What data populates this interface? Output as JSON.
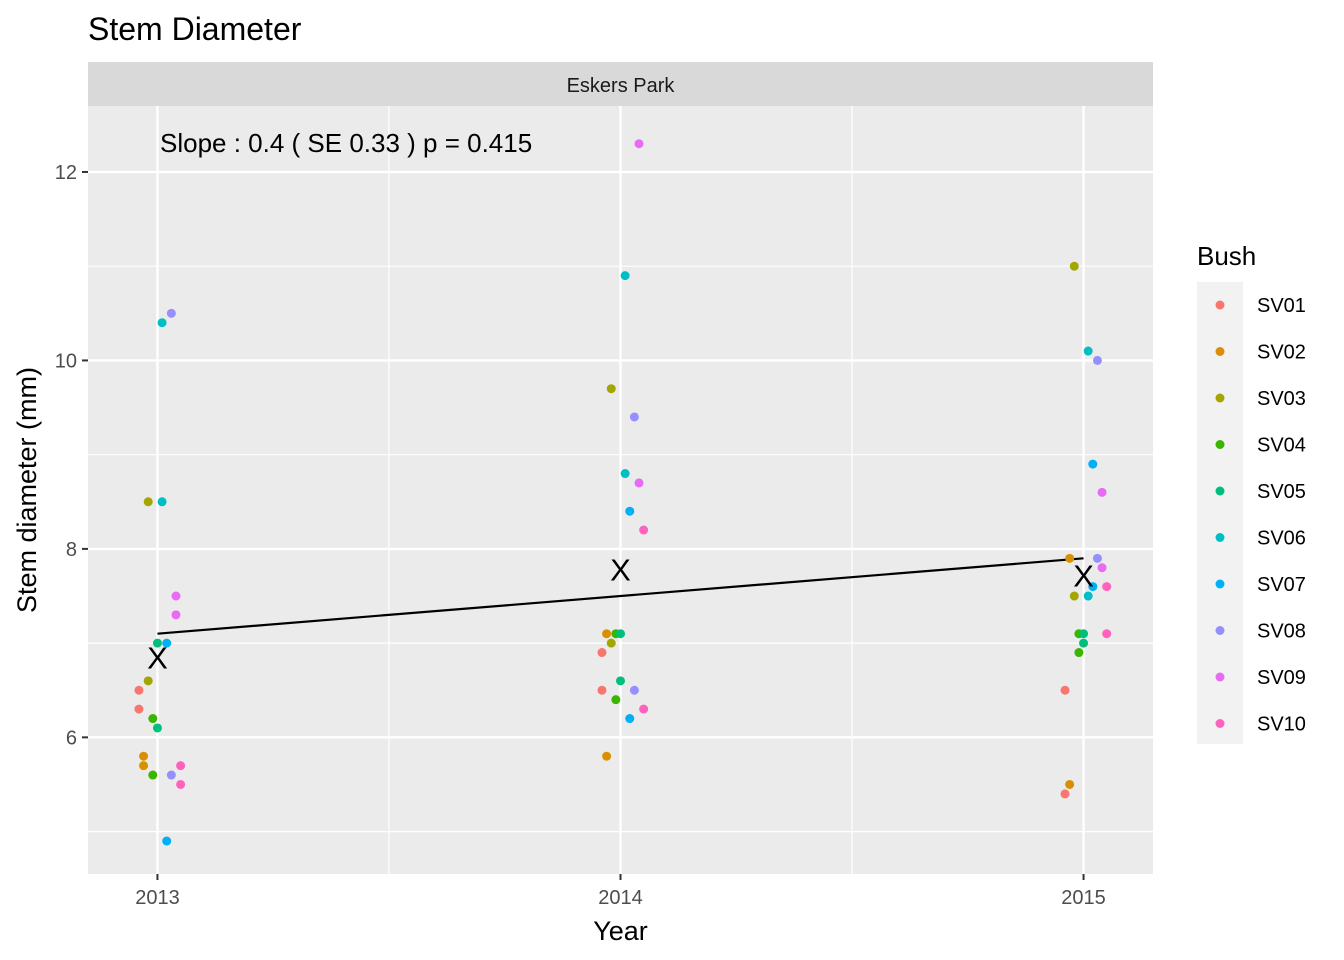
{
  "chart_data": {
    "type": "scatter",
    "title": "Stem Diameter",
    "facet_label": "Eskers Park",
    "xlabel": "Year",
    "ylabel": "Stem diameter (mm)",
    "x_ticks": [
      2013,
      2014,
      2015
    ],
    "y_ticks": [
      6,
      8,
      10,
      12
    ],
    "xlim": [
      2012.85,
      2015.15
    ],
    "ylim": [
      4.55,
      12.7
    ],
    "grid": true,
    "legend_title": "Bush",
    "legend_position": "right",
    "annotation": "Slope :  0.4  ( SE  0.33 ) p = 0.415",
    "series": [
      {
        "name": "SV01",
        "color": "#F8766D",
        "points": [
          [
            2012.96,
            6.5
          ],
          [
            2012.96,
            6.3
          ],
          [
            2013.96,
            6.9
          ],
          [
            2013.96,
            6.5
          ],
          [
            2014.96,
            6.5
          ],
          [
            2014.96,
            5.4
          ]
        ]
      },
      {
        "name": "SV02",
        "color": "#D89000",
        "points": [
          [
            2012.97,
            5.8
          ],
          [
            2012.97,
            5.7
          ],
          [
            2013.97,
            7.1
          ],
          [
            2013.97,
            5.8
          ],
          [
            2014.97,
            7.9
          ],
          [
            2014.97,
            5.5
          ]
        ]
      },
      {
        "name": "SV03",
        "color": "#A3A500",
        "points": [
          [
            2012.98,
            8.5
          ],
          [
            2012.98,
            6.6
          ],
          [
            2013.98,
            9.7
          ],
          [
            2013.98,
            7.0
          ],
          [
            2014.98,
            11.0
          ],
          [
            2014.98,
            7.5
          ]
        ]
      },
      {
        "name": "SV04",
        "color": "#39B600",
        "points": [
          [
            2012.99,
            6.2
          ],
          [
            2012.99,
            5.6
          ],
          [
            2013.99,
            7.1
          ],
          [
            2013.99,
            6.4
          ],
          [
            2014.99,
            7.1
          ],
          [
            2014.99,
            6.9
          ]
        ]
      },
      {
        "name": "SV05",
        "color": "#00BF7D",
        "points": [
          [
            2013.0,
            7.0
          ],
          [
            2013.0,
            6.1
          ],
          [
            2014.0,
            7.1
          ],
          [
            2014.0,
            6.6
          ],
          [
            2015.0,
            7.1
          ],
          [
            2015.0,
            7.0
          ]
        ]
      },
      {
        "name": "SV06",
        "color": "#00BFC4",
        "points": [
          [
            2013.01,
            10.4
          ],
          [
            2013.01,
            8.5
          ],
          [
            2014.01,
            10.9
          ],
          [
            2014.01,
            8.8
          ],
          [
            2015.01,
            10.1
          ],
          [
            2015.01,
            7.5
          ]
        ]
      },
      {
        "name": "SV07",
        "color": "#00B0F6",
        "points": [
          [
            2013.02,
            7.0
          ],
          [
            2013.02,
            4.9
          ],
          [
            2014.02,
            8.4
          ],
          [
            2014.02,
            6.2
          ],
          [
            2015.02,
            8.9
          ],
          [
            2015.02,
            7.6
          ]
        ]
      },
      {
        "name": "SV08",
        "color": "#9590FF",
        "points": [
          [
            2013.03,
            10.5
          ],
          [
            2013.03,
            5.6
          ],
          [
            2014.03,
            9.4
          ],
          [
            2014.03,
            6.5
          ],
          [
            2015.03,
            10.0
          ],
          [
            2015.03,
            7.9
          ]
        ]
      },
      {
        "name": "SV09",
        "color": "#E76BF3",
        "points": [
          [
            2013.04,
            7.5
          ],
          [
            2013.04,
            7.3
          ],
          [
            2014.04,
            12.3
          ],
          [
            2014.04,
            8.7
          ],
          [
            2015.04,
            8.6
          ],
          [
            2015.04,
            7.8
          ]
        ]
      },
      {
        "name": "SV10",
        "color": "#FF62BC",
        "points": [
          [
            2013.05,
            5.7
          ],
          [
            2013.05,
            5.5
          ],
          [
            2014.05,
            8.2
          ],
          [
            2014.05,
            6.3
          ],
          [
            2015.05,
            7.6
          ],
          [
            2015.05,
            7.1
          ]
        ]
      }
    ],
    "means": {
      "marker": "X",
      "points": [
        [
          2013,
          6.85
        ],
        [
          2014,
          7.78
        ],
        [
          2015,
          7.72
        ]
      ]
    },
    "fit_line": [
      [
        2013,
        7.1
      ],
      [
        2015,
        7.9
      ]
    ]
  }
}
